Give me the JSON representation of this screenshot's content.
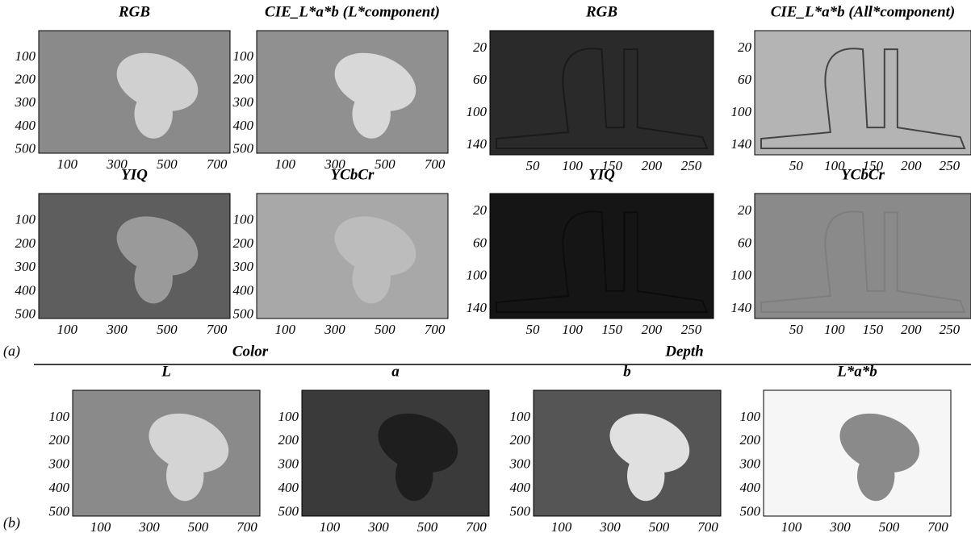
{
  "section_a": {
    "label": "(a)",
    "color_heading": "Color",
    "depth_heading": "Depth",
    "panels": [
      {
        "title": "RGB",
        "yticks": [
          100,
          200,
          300,
          400,
          500
        ],
        "xticks": [
          100,
          300,
          500,
          700
        ]
      },
      {
        "title": "CIE_L*a*b (L*component)",
        "yticks": [
          100,
          200,
          300,
          400,
          500
        ],
        "xticks": [
          100,
          300,
          500,
          700
        ]
      },
      {
        "title": "RGB",
        "yticks": [
          20,
          60,
          100,
          140
        ],
        "xticks": [
          50,
          100,
          150,
          200,
          250
        ]
      },
      {
        "title": "CIE_L*a*b (All*component)",
        "yticks": [
          20,
          60,
          100,
          140
        ],
        "xticks": [
          50,
          100,
          150,
          200,
          250
        ]
      },
      {
        "title": "YIQ",
        "yticks": [
          100,
          200,
          300,
          400,
          500
        ],
        "xticks": [
          100,
          300,
          500,
          700
        ]
      },
      {
        "title": "YCbCr",
        "yticks": [
          100,
          200,
          300,
          400,
          500
        ],
        "xticks": [
          100,
          300,
          500,
          700
        ]
      },
      {
        "title": "YIQ",
        "yticks": [
          20,
          60,
          100,
          140
        ],
        "xticks": [
          50,
          100,
          150,
          200,
          250
        ]
      },
      {
        "title": "YCbCr",
        "yticks": [
          20,
          60,
          100,
          140
        ],
        "xticks": [
          50,
          100,
          150,
          200,
          250
        ]
      }
    ]
  },
  "section_b": {
    "label": "(b)",
    "panels": [
      {
        "title": "L",
        "yticks": [
          100,
          200,
          300,
          400,
          500
        ],
        "xticks": [
          100,
          300,
          500,
          700
        ]
      },
      {
        "title": "a",
        "yticks": [
          100,
          200,
          300,
          400,
          500
        ],
        "xticks": [
          100,
          300,
          500,
          700
        ]
      },
      {
        "title": "b",
        "yticks": [
          100,
          200,
          300,
          400,
          500
        ],
        "xticks": [
          100,
          300,
          500,
          700
        ]
      },
      {
        "title": "L*a*b",
        "yticks": [
          100,
          200,
          300,
          400,
          500
        ],
        "xticks": [
          100,
          300,
          500,
          700
        ]
      }
    ]
  }
}
